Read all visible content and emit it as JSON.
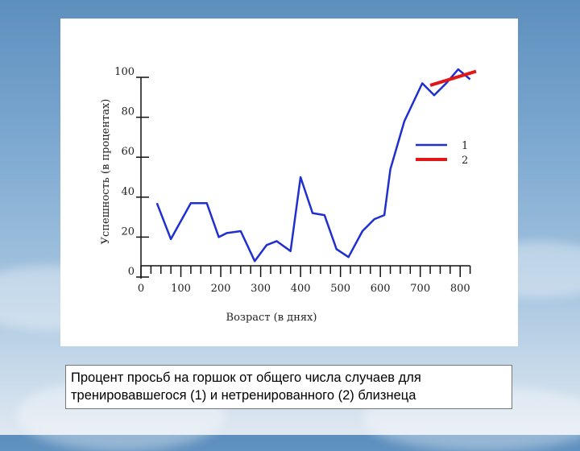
{
  "caption": "Процент просьб на горшок от общего числа случаев для тренировавшегося (1) и нетренированного (2) близнеца",
  "chart_data": {
    "type": "line",
    "title": "",
    "xlabel": "Возраст (в днях)",
    "ylabel": "Успешность (в процентах)",
    "xlim": [
      0,
      850
    ],
    "ylim": [
      0,
      100
    ],
    "x_ticks": [
      "0",
      "100",
      "200",
      "300",
      "400",
      "500",
      "600",
      "700",
      "800"
    ],
    "y_ticks": [
      "0",
      "20",
      "40",
      "60",
      "80",
      "100"
    ],
    "legend_position": "right-middle",
    "series": [
      {
        "name": "1",
        "color": "#1f2fd0",
        "x": [
          40,
          75,
          125,
          165,
          195,
          215,
          250,
          285,
          315,
          340,
          375,
          400,
          430,
          460,
          490,
          520,
          555,
          585,
          610,
          625,
          660,
          705,
          735,
          765,
          795,
          825
        ],
        "y": [
          37,
          19,
          37,
          37,
          20,
          22,
          23,
          8,
          16,
          18,
          13,
          50,
          32,
          31,
          14,
          10,
          23,
          29,
          31,
          54,
          78,
          97,
          91,
          97,
          104,
          99
        ]
      },
      {
        "name": "2",
        "color": "#e01818",
        "x": [
          725,
          840
        ],
        "y": [
          96,
          103
        ]
      }
    ]
  }
}
